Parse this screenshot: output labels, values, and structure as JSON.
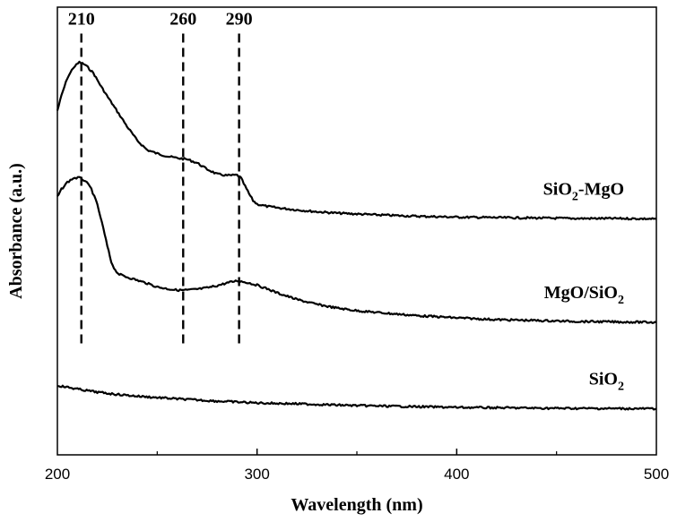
{
  "chart_data": {
    "type": "line",
    "xlabel": "Wavelength (nm)",
    "ylabel": "Absorbance (a.u.)",
    "xlim": [
      200,
      500
    ],
    "ylim": [
      0,
      1
    ],
    "x_ticks": [
      200,
      300,
      400,
      500
    ],
    "x_minor_ticks": [
      250,
      350,
      450
    ],
    "y_ticks": [],
    "grid": false,
    "reference_lines": [
      {
        "x": 212,
        "label": "210",
        "y_range": [
          0.237,
          0.941
        ]
      },
      {
        "x": 263,
        "label": "260",
        "y_range": [
          0.237,
          0.941
        ]
      },
      {
        "x": 291,
        "label": "290",
        "y_range": [
          0.237,
          0.941
        ]
      }
    ],
    "series": [
      {
        "name": "SiO2-MgO",
        "label_parts": [
          {
            "text": "SiO"
          },
          {
            "text": "2",
            "sub": true
          },
          {
            "text": "-MgO"
          }
        ],
        "x": [
          200,
          202,
          205,
          208,
          211,
          214,
          218,
          222,
          226,
          230,
          235,
          240,
          245,
          250,
          255,
          260,
          265,
          270,
          275,
          280,
          285,
          290,
          292,
          294,
          296,
          298,
          300,
          305,
          310,
          320,
          330,
          340,
          350,
          360,
          380,
          400,
          420,
          440,
          460,
          480,
          500
        ],
        "y": [
          0.769,
          0.802,
          0.842,
          0.865,
          0.877,
          0.871,
          0.853,
          0.822,
          0.794,
          0.767,
          0.733,
          0.702,
          0.681,
          0.673,
          0.667,
          0.663,
          0.66,
          0.652,
          0.638,
          0.627,
          0.624,
          0.625,
          0.618,
          0.6,
          0.583,
          0.568,
          0.56,
          0.555,
          0.552,
          0.547,
          0.543,
          0.54,
          0.538,
          0.536,
          0.533,
          0.531,
          0.53,
          0.529,
          0.528,
          0.528,
          0.527
        ]
      },
      {
        "name": "MgO/SiO2",
        "label_parts": [
          {
            "text": "MgO/SiO"
          },
          {
            "text": "2",
            "sub": true
          }
        ],
        "x": [
          200,
          202,
          205,
          208,
          211,
          214,
          217,
          220,
          223,
          225,
          227,
          229,
          231,
          235,
          240,
          245,
          250,
          255,
          260,
          265,
          270,
          275,
          280,
          285,
          290,
          295,
          300,
          305,
          310,
          320,
          330,
          340,
          350,
          360,
          380,
          400,
          420,
          440,
          460,
          480,
          500
        ],
        "y": [
          0.576,
          0.593,
          0.609,
          0.618,
          0.619,
          0.612,
          0.594,
          0.559,
          0.506,
          0.466,
          0.431,
          0.412,
          0.403,
          0.397,
          0.39,
          0.383,
          0.375,
          0.371,
          0.368,
          0.368,
          0.37,
          0.373,
          0.378,
          0.384,
          0.389,
          0.385,
          0.379,
          0.371,
          0.362,
          0.347,
          0.336,
          0.328,
          0.322,
          0.318,
          0.311,
          0.306,
          0.302,
          0.3,
          0.298,
          0.297,
          0.296
        ]
      },
      {
        "name": "SiO2",
        "label_parts": [
          {
            "text": "SiO"
          },
          {
            "text": "2",
            "sub": true
          }
        ],
        "x": [
          200,
          210,
          220,
          230,
          240,
          250,
          260,
          280,
          300,
          320,
          350,
          400,
          450,
          500
        ],
        "y": [
          0.155,
          0.147,
          0.14,
          0.135,
          0.131,
          0.128,
          0.125,
          0.12,
          0.116,
          0.114,
          0.11,
          0.106,
          0.104,
          0.103
        ]
      }
    ]
  }
}
